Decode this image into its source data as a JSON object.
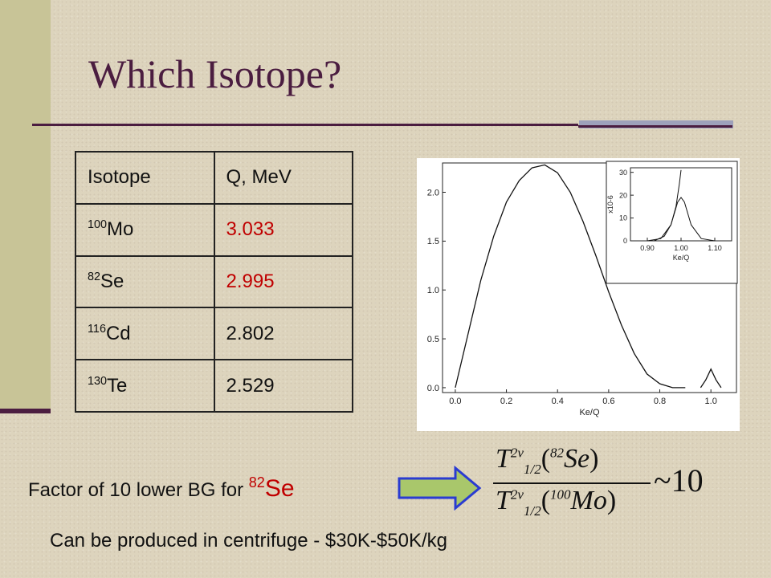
{
  "slide": {
    "title": "Which Isotope?"
  },
  "table": {
    "headers": [
      "Isotope",
      "Q, MeV"
    ],
    "rows": [
      {
        "mass": "100",
        "symbol": "Mo",
        "q": "3.033",
        "highlight": true
      },
      {
        "mass": "82",
        "symbol": "Se",
        "q": "2.995",
        "highlight": true
      },
      {
        "mass": "116",
        "symbol": "Cd",
        "q": "2.802",
        "highlight": false
      },
      {
        "mass": "130",
        "symbol": "Te",
        "q": "2.529",
        "highlight": false
      }
    ]
  },
  "chart_data": [
    {
      "type": "line",
      "xlabel": "Ke/Q",
      "xlim": [
        -0.05,
        1.1
      ],
      "ylim": [
        -0.05,
        2.3
      ],
      "x_ticks": [
        "0.0",
        "0.2",
        "0.4",
        "0.6",
        "0.8",
        "1.0"
      ],
      "y_ticks": [
        "0.0",
        "0.5",
        "1.0",
        "1.5",
        "2.0"
      ],
      "series": [
        {
          "x": [
            0.0,
            0.05,
            0.1,
            0.15,
            0.2,
            0.25,
            0.3,
            0.35,
            0.4,
            0.45,
            0.5,
            0.55,
            0.6,
            0.65,
            0.7,
            0.75,
            0.8,
            0.85,
            0.9
          ],
          "values": [
            0.0,
            0.55,
            1.1,
            1.55,
            1.9,
            2.12,
            2.25,
            2.28,
            2.2,
            2.0,
            1.7,
            1.35,
            0.98,
            0.64,
            0.35,
            0.14,
            0.04,
            0.0,
            0.0
          ]
        },
        {
          "x": [
            0.96,
            0.98,
            1.0,
            1.02,
            1.04
          ],
          "values": [
            0.0,
            0.08,
            0.19,
            0.08,
            0.0
          ]
        }
      ]
    },
    {
      "type": "line",
      "xlabel": "Ke/Q",
      "ylabel": "x10-6",
      "xlim": [
        0.85,
        1.15
      ],
      "ylim": [
        0,
        32
      ],
      "x_ticks": [
        "0.90",
        "1.00",
        "1.10"
      ],
      "y_ticks": [
        "0",
        "10",
        "20",
        "30"
      ],
      "series": [
        {
          "x": [
            0.9,
            0.94,
            0.97,
            0.99,
            1.0,
            1.01,
            1.03,
            1.06,
            1.1
          ],
          "values": [
            0.0,
            1.0,
            7.0,
            17.0,
            19.0,
            17.0,
            7.0,
            1.0,
            0.0
          ]
        },
        {
          "x": [
            0.92,
            0.95,
            0.97,
            0.985,
            0.995,
            1.0
          ],
          "values": [
            0.0,
            2.0,
            7.0,
            15.0,
            25.0,
            31.0
          ]
        }
      ]
    }
  ],
  "factor_text": "Factor of 10 lower BG for ",
  "factor_iso_mass": "82",
  "factor_iso_symbol": "Se",
  "formula": {
    "num_T": "T",
    "num_sub": "1/2",
    "num_sup": "2ν",
    "num_mass": "82",
    "num_symbol": "Se",
    "den_T": "T",
    "den_sub": "1/2",
    "den_sup": "2ν",
    "den_mass": "100",
    "den_symbol": "Mo",
    "tilde": "~10"
  },
  "centrifuge_text": "Can be produced in centrifuge - $30K-$50K/kg",
  "colors": {
    "title": "#4b1d40",
    "highlight": "#c00000",
    "arrow_fill": "#a9c76b",
    "arrow_stroke": "#2a3bd1"
  }
}
